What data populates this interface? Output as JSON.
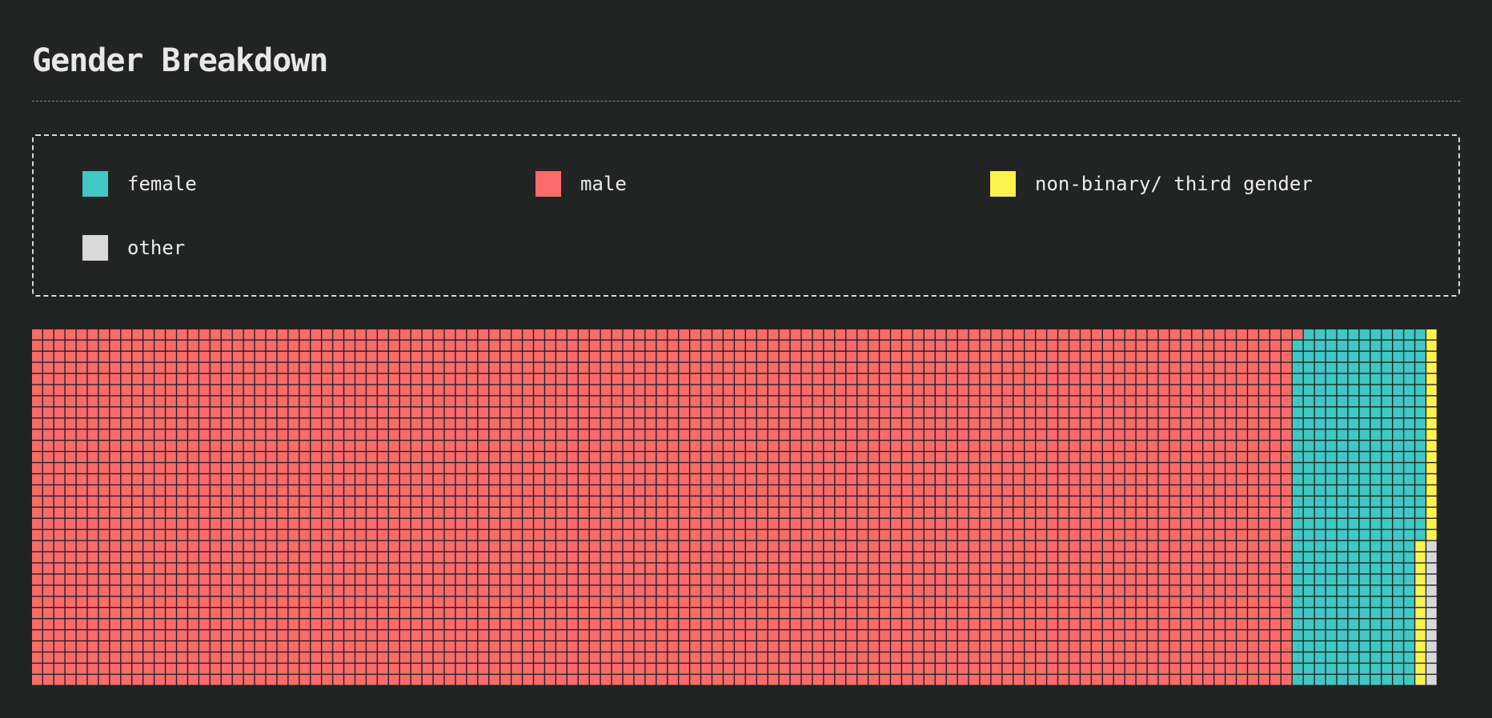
{
  "title": "Gender Breakdown",
  "legend": [
    {
      "label": "female",
      "color": "#3fc8c4"
    },
    {
      "label": "male",
      "color": "#fd6a6a"
    },
    {
      "label": "non-binary/ third gender",
      "color": "#fcf34d"
    },
    {
      "label": "other",
      "color": "#d9d9d9"
    }
  ],
  "chart_data": {
    "type": "waffle",
    "title": "Gender Breakdown",
    "unit_grid": {
      "rows": 32,
      "columns": 128
    },
    "fill_order": "column-major, left to right, top to bottom",
    "series": [
      {
        "name": "male",
        "color": "#fd6a6a",
        "units": 3617
      },
      {
        "name": "female",
        "color": "#3fc8c4",
        "units": 370
      },
      {
        "name": "non-binary/ third gender",
        "color": "#fcf34d",
        "units": 32
      },
      {
        "name": "other",
        "color": "#d9d9d9",
        "units": 13
      }
    ],
    "total_units": 4032,
    "legend_position": "top"
  }
}
